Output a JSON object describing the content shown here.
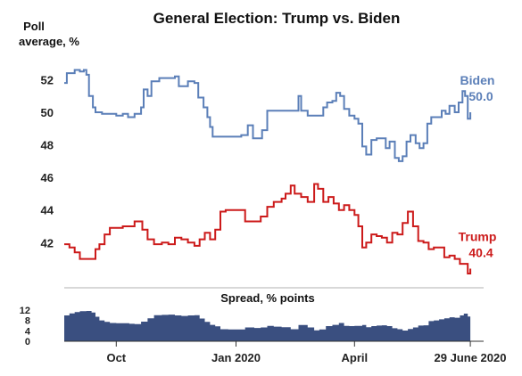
{
  "chart_data": [
    {
      "type": "line",
      "title": "General Election: Trump vs. Biden",
      "ylabel": "Poll average, %",
      "ylabel_lines": [
        "Poll",
        "average, %"
      ],
      "ylim": [
        39.5,
        53.5
      ],
      "yticks": [
        42,
        44,
        46,
        48,
        50,
        52
      ],
      "xlim": [
        "2019-08-22",
        "2020-07-01"
      ],
      "xticks": [
        {
          "date": "2019-10-01",
          "label": "Oct"
        },
        {
          "date": "2020-01-01",
          "label": "Jan 2020"
        },
        {
          "date": "2020-04-01",
          "label": "April"
        },
        {
          "date": "2020-06-29",
          "label": "29 June 2020"
        }
      ],
      "grid": false,
      "series": [
        {
          "name": "Biden",
          "last_value_label": "50.0",
          "color": "#5b7fb8",
          "points": [
            [
              "2019-08-22",
              51.8
            ],
            [
              "2019-08-24",
              52.4
            ],
            [
              "2019-08-28",
              52.4
            ],
            [
              "2019-08-30",
              52.6
            ],
            [
              "2019-09-03",
              52.5
            ],
            [
              "2019-09-06",
              52.6
            ],
            [
              "2019-09-08",
              52.3
            ],
            [
              "2019-09-10",
              51.0
            ],
            [
              "2019-09-13",
              50.3
            ],
            [
              "2019-09-15",
              50.0
            ],
            [
              "2019-09-20",
              49.9
            ],
            [
              "2019-09-25",
              49.9
            ],
            [
              "2019-10-01",
              49.8
            ],
            [
              "2019-10-06",
              49.9
            ],
            [
              "2019-10-10",
              49.7
            ],
            [
              "2019-10-15",
              49.9
            ],
            [
              "2019-10-20",
              50.3
            ],
            [
              "2019-10-22",
              51.4
            ],
            [
              "2019-10-25",
              51.0
            ],
            [
              "2019-10-28",
              51.9
            ],
            [
              "2019-11-03",
              52.1
            ],
            [
              "2019-11-10",
              52.1
            ],
            [
              "2019-11-15",
              52.2
            ],
            [
              "2019-11-18",
              51.6
            ],
            [
              "2019-11-25",
              51.9
            ],
            [
              "2019-11-30",
              51.8
            ],
            [
              "2019-12-03",
              50.9
            ],
            [
              "2019-12-07",
              50.3
            ],
            [
              "2019-12-10",
              49.7
            ],
            [
              "2019-12-12",
              49.1
            ],
            [
              "2019-12-14",
              48.5
            ],
            [
              "2019-12-20",
              48.5
            ],
            [
              "2019-12-26",
              48.5
            ],
            [
              "2020-01-01",
              48.5
            ],
            [
              "2020-01-05",
              48.6
            ],
            [
              "2020-01-08",
              48.6
            ],
            [
              "2020-01-10",
              49.2
            ],
            [
              "2020-01-14",
              48.4
            ],
            [
              "2020-01-18",
              48.4
            ],
            [
              "2020-01-21",
              48.9
            ],
            [
              "2020-01-25",
              50.1
            ],
            [
              "2020-02-01",
              50.1
            ],
            [
              "2020-02-08",
              50.1
            ],
            [
              "2020-02-14",
              50.1
            ],
            [
              "2020-02-18",
              51.0
            ],
            [
              "2020-02-20",
              50.1
            ],
            [
              "2020-02-25",
              49.8
            ],
            [
              "2020-03-01",
              49.8
            ],
            [
              "2020-03-05",
              49.8
            ],
            [
              "2020-03-08",
              50.3
            ],
            [
              "2020-03-11",
              50.6
            ],
            [
              "2020-03-15",
              50.7
            ],
            [
              "2020-03-18",
              51.2
            ],
            [
              "2020-03-21",
              51.0
            ],
            [
              "2020-03-24",
              50.2
            ],
            [
              "2020-03-28",
              49.8
            ],
            [
              "2020-04-01",
              49.6
            ],
            [
              "2020-04-04",
              49.3
            ],
            [
              "2020-04-07",
              47.9
            ],
            [
              "2020-04-10",
              47.4
            ],
            [
              "2020-04-14",
              48.3
            ],
            [
              "2020-04-18",
              48.4
            ],
            [
              "2020-04-22",
              48.4
            ],
            [
              "2020-04-25",
              47.8
            ],
            [
              "2020-04-28",
              48.2
            ],
            [
              "2020-05-02",
              47.2
            ],
            [
              "2020-05-05",
              47.0
            ],
            [
              "2020-05-08",
              47.3
            ],
            [
              "2020-05-11",
              48.2
            ],
            [
              "2020-05-14",
              48.6
            ],
            [
              "2020-05-18",
              48.1
            ],
            [
              "2020-05-21",
              47.8
            ],
            [
              "2020-05-24",
              48.1
            ],
            [
              "2020-05-27",
              49.3
            ],
            [
              "2020-05-30",
              49.7
            ],
            [
              "2020-06-03",
              49.7
            ],
            [
              "2020-06-07",
              50.1
            ],
            [
              "2020-06-10",
              49.9
            ],
            [
              "2020-06-13",
              50.4
            ],
            [
              "2020-06-17",
              50.0
            ],
            [
              "2020-06-20",
              50.6
            ],
            [
              "2020-06-23",
              51.3
            ],
            [
              "2020-06-25",
              51.0
            ],
            [
              "2020-06-27",
              49.6
            ],
            [
              "2020-06-29",
              50.0
            ]
          ]
        },
        {
          "name": "Trump",
          "last_value_label": "40.4",
          "color": "#cc1a1a",
          "points": [
            [
              "2019-08-22",
              41.9
            ],
            [
              "2019-08-26",
              41.7
            ],
            [
              "2019-08-30",
              41.4
            ],
            [
              "2019-09-03",
              41.0
            ],
            [
              "2019-09-08",
              41.0
            ],
            [
              "2019-09-12",
              41.0
            ],
            [
              "2019-09-15",
              41.6
            ],
            [
              "2019-09-18",
              41.9
            ],
            [
              "2019-09-22",
              42.5
            ],
            [
              "2019-09-26",
              42.9
            ],
            [
              "2019-10-01",
              42.9
            ],
            [
              "2019-10-06",
              43.0
            ],
            [
              "2019-10-11",
              43.0
            ],
            [
              "2019-10-15",
              43.3
            ],
            [
              "2019-10-18",
              43.3
            ],
            [
              "2019-10-21",
              42.8
            ],
            [
              "2019-10-25",
              42.2
            ],
            [
              "2019-10-30",
              41.9
            ],
            [
              "2019-11-05",
              42.0
            ],
            [
              "2019-11-10",
              41.9
            ],
            [
              "2019-11-15",
              42.3
            ],
            [
              "2019-11-20",
              42.2
            ],
            [
              "2019-11-25",
              42.0
            ],
            [
              "2019-11-30",
              41.8
            ],
            [
              "2019-12-04",
              42.2
            ],
            [
              "2019-12-08",
              42.6
            ],
            [
              "2019-12-12",
              42.2
            ],
            [
              "2019-12-16",
              42.8
            ],
            [
              "2019-12-20",
              43.9
            ],
            [
              "2019-12-24",
              44.0
            ],
            [
              "2019-12-30",
              44.0
            ],
            [
              "2020-01-05",
              44.0
            ],
            [
              "2020-01-08",
              43.3
            ],
            [
              "2020-01-15",
              43.3
            ],
            [
              "2020-01-20",
              43.6
            ],
            [
              "2020-01-25",
              44.2
            ],
            [
              "2020-01-30",
              44.5
            ],
            [
              "2020-02-05",
              44.7
            ],
            [
              "2020-02-08",
              45.0
            ],
            [
              "2020-02-12",
              45.5
            ],
            [
              "2020-02-15",
              45.0
            ],
            [
              "2020-02-20",
              44.8
            ],
            [
              "2020-02-25",
              44.5
            ],
            [
              "2020-03-01",
              45.6
            ],
            [
              "2020-03-04",
              45.3
            ],
            [
              "2020-03-08",
              44.5
            ],
            [
              "2020-03-12",
              44.8
            ],
            [
              "2020-03-16",
              44.4
            ],
            [
              "2020-03-20",
              44.0
            ],
            [
              "2020-03-24",
              44.3
            ],
            [
              "2020-03-28",
              44.0
            ],
            [
              "2020-04-01",
              43.7
            ],
            [
              "2020-04-04",
              43.0
            ],
            [
              "2020-04-07",
              41.7
            ],
            [
              "2020-04-10",
              42.0
            ],
            [
              "2020-04-14",
              42.5
            ],
            [
              "2020-04-18",
              42.4
            ],
            [
              "2020-04-22",
              42.3
            ],
            [
              "2020-04-26",
              42.0
            ],
            [
              "2020-04-30",
              42.6
            ],
            [
              "2020-05-04",
              42.5
            ],
            [
              "2020-05-08",
              43.2
            ],
            [
              "2020-05-12",
              43.9
            ],
            [
              "2020-05-16",
              43.0
            ],
            [
              "2020-05-20",
              42.1
            ],
            [
              "2020-05-24",
              42.0
            ],
            [
              "2020-05-28",
              41.6
            ],
            [
              "2020-06-01",
              41.7
            ],
            [
              "2020-06-05",
              41.7
            ],
            [
              "2020-06-09",
              41.1
            ],
            [
              "2020-06-13",
              41.2
            ],
            [
              "2020-06-17",
              41.0
            ],
            [
              "2020-06-21",
              40.7
            ],
            [
              "2020-06-24",
              40.7
            ],
            [
              "2020-06-27",
              40.1
            ],
            [
              "2020-06-29",
              40.4
            ]
          ]
        }
      ]
    },
    {
      "type": "area",
      "title": "Spread, % points",
      "ylim": [
        0,
        14
      ],
      "yticks": [
        0,
        4,
        8,
        12
      ],
      "xlim": [
        "2019-08-22",
        "2020-07-01"
      ],
      "grid": false,
      "series": [
        {
          "name": "",
          "color": "#3a4f80",
          "points": [
            [
              "2019-08-22",
              9.9
            ],
            [
              "2019-08-26",
              10.7
            ],
            [
              "2019-08-30",
              11.2
            ],
            [
              "2019-09-03",
              11.5
            ],
            [
              "2019-09-08",
              11.6
            ],
            [
              "2019-09-12",
              11.0
            ],
            [
              "2019-09-15",
              9.4
            ],
            [
              "2019-09-18",
              8.0
            ],
            [
              "2019-09-22",
              7.4
            ],
            [
              "2019-09-26",
              7.0
            ],
            [
              "2019-10-01",
              6.9
            ],
            [
              "2019-10-06",
              6.9
            ],
            [
              "2019-10-11",
              6.7
            ],
            [
              "2019-10-15",
              6.6
            ],
            [
              "2019-10-20",
              7.5
            ],
            [
              "2019-10-25",
              8.8
            ],
            [
              "2019-10-30",
              10.0
            ],
            [
              "2019-11-05",
              10.1
            ],
            [
              "2019-11-10",
              10.2
            ],
            [
              "2019-11-15",
              9.9
            ],
            [
              "2019-11-20",
              9.7
            ],
            [
              "2019-11-25",
              9.9
            ],
            [
              "2019-11-30",
              10.0
            ],
            [
              "2019-12-04",
              8.7
            ],
            [
              "2019-12-08",
              7.4
            ],
            [
              "2019-12-12",
              6.3
            ],
            [
              "2019-12-16",
              5.7
            ],
            [
              "2019-12-20",
              4.6
            ],
            [
              "2019-12-26",
              4.5
            ],
            [
              "2020-01-01",
              4.5
            ],
            [
              "2020-01-08",
              5.3
            ],
            [
              "2020-01-15",
              5.1
            ],
            [
              "2020-01-20",
              5.3
            ],
            [
              "2020-01-25",
              5.9
            ],
            [
              "2020-01-30",
              5.6
            ],
            [
              "2020-02-05",
              5.4
            ],
            [
              "2020-02-12",
              4.6
            ],
            [
              "2020-02-18",
              6.2
            ],
            [
              "2020-02-25",
              5.3
            ],
            [
              "2020-03-01",
              4.2
            ],
            [
              "2020-03-05",
              4.5
            ],
            [
              "2020-03-10",
              5.8
            ],
            [
              "2020-03-15",
              6.3
            ],
            [
              "2020-03-20",
              7.0
            ],
            [
              "2020-03-24",
              5.9
            ],
            [
              "2020-03-28",
              5.8
            ],
            [
              "2020-04-01",
              5.9
            ],
            [
              "2020-04-07",
              6.2
            ],
            [
              "2020-04-10",
              5.4
            ],
            [
              "2020-04-14",
              5.8
            ],
            [
              "2020-04-18",
              6.0
            ],
            [
              "2020-04-22",
              6.1
            ],
            [
              "2020-04-26",
              5.8
            ],
            [
              "2020-04-30",
              5.0
            ],
            [
              "2020-05-04",
              4.6
            ],
            [
              "2020-05-08",
              4.1
            ],
            [
              "2020-05-12",
              4.7
            ],
            [
              "2020-05-16",
              5.3
            ],
            [
              "2020-05-20",
              6.0
            ],
            [
              "2020-05-24",
              6.1
            ],
            [
              "2020-05-28",
              7.7
            ],
            [
              "2020-06-01",
              8.0
            ],
            [
              "2020-06-05",
              8.4
            ],
            [
              "2020-06-09",
              8.8
            ],
            [
              "2020-06-13",
              9.2
            ],
            [
              "2020-06-17",
              9.0
            ],
            [
              "2020-06-21",
              9.9
            ],
            [
              "2020-06-24",
              10.6
            ],
            [
              "2020-06-27",
              9.5
            ],
            [
              "2020-06-29",
              9.6
            ]
          ]
        }
      ]
    }
  ]
}
